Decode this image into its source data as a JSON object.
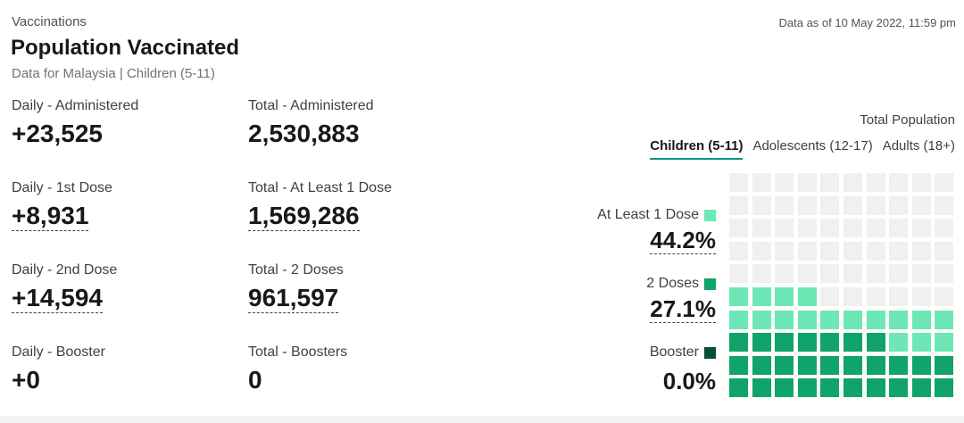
{
  "header": {
    "eyebrow": "Vaccinations",
    "title": "Population Vaccinated",
    "subtitle": "Data for Malaysia | Children (5-11)",
    "as_of": "Data as of 10 May 2022, 11:59 pm"
  },
  "stats": {
    "daily_administered": {
      "label": "Daily - Administered",
      "value": "+23,525"
    },
    "total_administered": {
      "label": "Total - Administered",
      "value": "2,530,883"
    },
    "daily_first": {
      "label": "Daily - 1st Dose",
      "value": "+8,931"
    },
    "total_first": {
      "label": "Total - At Least 1 Dose",
      "value": "1,569,286"
    },
    "daily_second": {
      "label": "Daily - 2nd Dose",
      "value": "+14,594"
    },
    "total_second": {
      "label": "Total - 2 Doses",
      "value": "961,597"
    },
    "daily_booster": {
      "label": "Daily - Booster",
      "value": "+0"
    },
    "total_booster": {
      "label": "Total - Boosters",
      "value": "0"
    }
  },
  "population": {
    "label": "Total Population",
    "tabs": [
      "Children (5-11)",
      "Adolescents (12-17)",
      "Adults (18+)"
    ],
    "active_tab": "Children (5-11)"
  },
  "legend": {
    "at_least_1": {
      "label": "At Least 1 Dose",
      "pct": "44.2%",
      "color": "#6ee7b7"
    },
    "two_doses": {
      "label": "2 Doses",
      "pct": "27.1%",
      "color": "#10a36a"
    },
    "booster": {
      "label": "Booster",
      "pct": "0.0%",
      "color": "#064e3b"
    }
  },
  "waffle": {
    "grid": "10x10",
    "at_least_1_pct": 44.2,
    "two_doses_pct": 27.1,
    "booster_pct": 0.0,
    "empty_color": "#f0f0f0",
    "first_color": "#6ee7b7",
    "second_color": "#10a36a"
  }
}
